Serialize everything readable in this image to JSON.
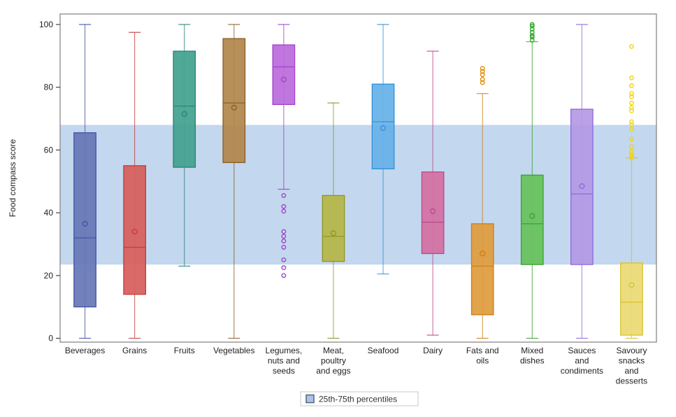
{
  "figure": {
    "ylabel": "Food compass score",
    "legend_label": "25th-75th percentiles"
  },
  "chart_data": {
    "type": "boxplot",
    "title": "",
    "xlabel": "",
    "ylabel": "Food compass score",
    "ylim": [
      0,
      100
    ],
    "yticks": [
      0,
      20,
      40,
      60,
      80,
      100
    ],
    "grid": false,
    "legend": {
      "label": "25th-75th percentiles",
      "position": "bottom-center"
    },
    "legend_swatch": {
      "fill": "#a9c4e6",
      "stroke": "#53657a"
    },
    "reference_band": {
      "label": "25th-75th percentiles",
      "from": 23.5,
      "to": 68,
      "color": "#c3d7ee"
    },
    "categories": [
      "Beverages",
      "Grains",
      "Fruits",
      "Vegetables",
      "Legumes, nuts and seeds",
      "Meat, poultry and eggs",
      "Seafood",
      "Dairy",
      "Fats and oils",
      "Mixed dishes",
      "Sauces and condiments",
      "Savoury snacks and desserts"
    ],
    "series": [
      {
        "name": "Beverages",
        "label_lines": [
          "Beverages"
        ],
        "whisker_low": 0,
        "q1": 10,
        "median": 32,
        "q3": 65.5,
        "whisker_high": 100,
        "mean": 36.5,
        "outliers": [],
        "fill": "#6777b7",
        "stroke": "#3f51a3"
      },
      {
        "name": "Grains",
        "label_lines": [
          "Grains"
        ],
        "whisker_low": 0,
        "q1": 14,
        "median": 29,
        "q3": 55,
        "whisker_high": 97.5,
        "mean": 34,
        "outliers": [],
        "fill": "#d75f5c",
        "stroke": "#c23a38"
      },
      {
        "name": "Fruits",
        "label_lines": [
          "Fruits"
        ],
        "whisker_low": 23,
        "q1": 54.5,
        "median": 74,
        "q3": 91.5,
        "whisker_high": 100,
        "mean": 71.5,
        "outliers": [],
        "fill": "#43a18f",
        "stroke": "#2a8173"
      },
      {
        "name": "Vegetables",
        "label_lines": [
          "Vegetables"
        ],
        "whisker_low": 0,
        "q1": 56,
        "median": 75,
        "q3": 95.5,
        "whisker_high": 100,
        "mean": 73.5,
        "outliers": [],
        "fill": "#b2874c",
        "stroke": "#8a5d26"
      },
      {
        "name": "Legumes, nuts and seeds",
        "label_lines": [
          "Legumes,",
          "nuts and",
          "seeds"
        ],
        "whisker_low": 47.5,
        "q1": 74.5,
        "median": 86.5,
        "q3": 93.5,
        "whisker_high": 100,
        "mean": 82.5,
        "outliers": [
          45.5,
          42,
          40.5,
          34,
          32.5,
          31,
          29,
          25,
          22.5,
          20
        ],
        "fill": "#bb6cdb",
        "stroke": "#a040cc"
      },
      {
        "name": "Meat, poultry and eggs",
        "label_lines": [
          "Meat,",
          "poultry",
          "and eggs"
        ],
        "whisker_low": 0,
        "q1": 24.5,
        "median": 32.5,
        "q3": 45.5,
        "whisker_high": 75,
        "mean": 33.5,
        "outliers": [],
        "fill": "#b5b747",
        "stroke": "#8f941f"
      },
      {
        "name": "Seafood",
        "label_lines": [
          "Seafood"
        ],
        "whisker_low": 20.5,
        "q1": 54,
        "median": 69,
        "q3": 81,
        "whisker_high": 100,
        "mean": 67,
        "outliers": [],
        "fill": "#67b1e8",
        "stroke": "#2f8fd8"
      },
      {
        "name": "Dairy",
        "label_lines": [
          "Dairy"
        ],
        "whisker_low": 1,
        "q1": 27,
        "median": 37,
        "q3": 53,
        "whisker_high": 91.5,
        "mean": 40.5,
        "outliers": [],
        "fill": "#d271a2",
        "stroke": "#bc4886"
      },
      {
        "name": "Fats and oils",
        "label_lines": [
          "Fats and",
          "oils"
        ],
        "whisker_low": 0,
        "q1": 7.5,
        "median": 23,
        "q3": 36.5,
        "whisker_high": 78,
        "mean": 27,
        "outliers": [
          81.5,
          82.5,
          84,
          85,
          86
        ],
        "fill": "#df9c3e",
        "stroke": "#cc7e14",
        "outlier_color": "#e08a00"
      },
      {
        "name": "Mixed dishes",
        "label_lines": [
          "Mixed",
          "dishes"
        ],
        "whisker_low": 0,
        "q1": 23.5,
        "median": 36.5,
        "q3": 52,
        "whisker_high": 94.5,
        "mean": 39,
        "outliers": [
          95,
          96,
          96.5,
          97.5,
          98.5,
          99.5,
          100
        ],
        "fill": "#67c25c",
        "stroke": "#36a32c",
        "outlier_color": "#2ea82c"
      },
      {
        "name": "Sauces and condiments",
        "label_lines": [
          "Sauces",
          "and",
          "condiments"
        ],
        "whisker_low": 0,
        "q1": 23.5,
        "median": 46,
        "q3": 73,
        "whisker_high": 100,
        "mean": 48.5,
        "outliers": [],
        "fill": "#b59ae6",
        "stroke": "#8e68dd"
      },
      {
        "name": "Savoury snacks and desserts",
        "label_lines": [
          "Savoury",
          "snacks",
          "and",
          "desserts"
        ],
        "whisker_low": 0,
        "q1": 1,
        "median": 11.5,
        "q3": 24,
        "whisker_high": 57.5,
        "mean": 17,
        "outliers": [
          57.5,
          58,
          58.5,
          59.5,
          61,
          63.5,
          66.5,
          68,
          69,
          72.5,
          73.5,
          75,
          77,
          78,
          80.5,
          83,
          93
        ],
        "fill": "#e9da74",
        "stroke": "#d8c126",
        "outlier_color": "#f2d500"
      }
    ]
  }
}
